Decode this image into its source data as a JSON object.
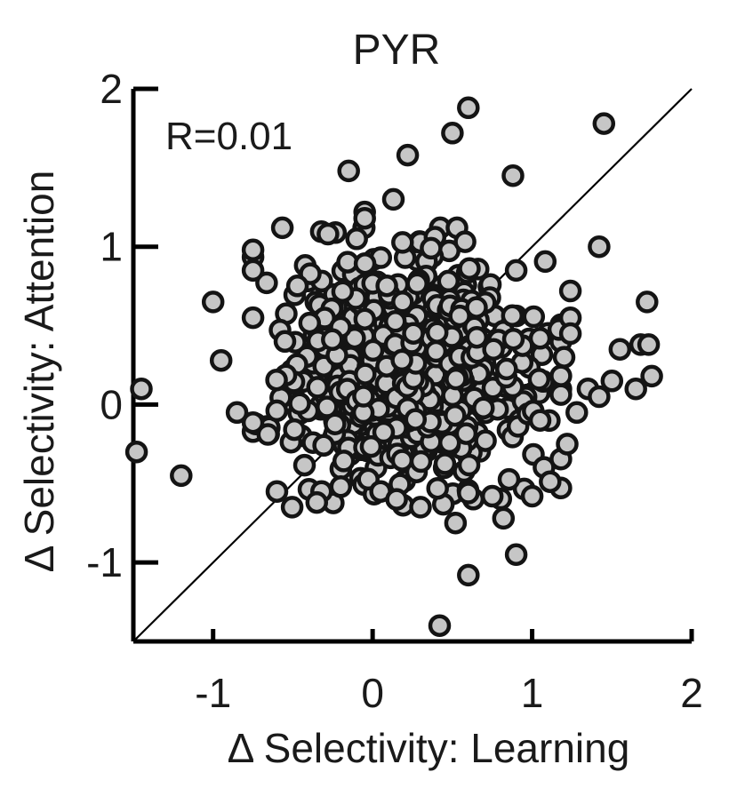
{
  "chart_data": {
    "type": "scatter",
    "title": "PYR",
    "xlabel": "Δ Selectivity: Learning",
    "ylabel": "Δ Selectivity: Attention",
    "xlim": [
      -1.5,
      2
    ],
    "ylim": [
      -1.5,
      2
    ],
    "xticks": [
      -1,
      0,
      1,
      2
    ],
    "yticks": [
      -1,
      0,
      1,
      2
    ],
    "xtick_labels": [
      "-1",
      "0",
      "1",
      "2"
    ],
    "ytick_labels": [
      "-1",
      "0",
      "1",
      "2"
    ],
    "annotation": "R=0.01",
    "reference_line": "identity (y = x)",
    "grid": false,
    "legend": "none",
    "marker_fill": "#c6c6c6",
    "marker_edge": "#141414",
    "series": [
      {
        "x": [
          0.6,
          0.5,
          0.22,
          -0.15,
          1.45,
          0.88,
          0.13,
          -0.05,
          -0.75,
          -0.75,
          -1.0,
          -0.95,
          -0.85,
          -1.45,
          -1.48,
          -1.2,
          -0.6,
          -0.55,
          1.42,
          1.5,
          1.35,
          1.55,
          1.65,
          1.72,
          1.68,
          1.73,
          1.75,
          1.24,
          1.24,
          1.24,
          1.2,
          1.28,
          1.42,
          1.22,
          0.9,
          0.6,
          0.42,
          0.05,
          0.52,
          0.15,
          0.3,
          0.75,
          0.82,
          1.0,
          1.05,
          1.05,
          0.9,
          -0.2,
          -0.32,
          -0.35,
          -0.28,
          -0.1,
          -0.05
        ],
        "y": [
          1.88,
          1.72,
          1.58,
          1.48,
          1.78,
          1.45,
          1.3,
          1.22,
          0.98,
          0.85,
          0.65,
          0.28,
          -0.05,
          0.1,
          -0.3,
          -0.45,
          -0.55,
          0.4,
          1.0,
          0.15,
          0.1,
          0.35,
          0.1,
          0.65,
          0.38,
          0.38,
          0.18,
          0.72,
          0.55,
          0.45,
          0.3,
          -0.05,
          0.05,
          -0.25,
          -0.95,
          -1.08,
          -1.4,
          -0.55,
          -0.75,
          -0.6,
          -0.65,
          -0.58,
          -0.72,
          -0.58,
          0.42,
          -0.1,
          0.85,
          -0.52,
          -0.55,
          -0.62,
          1.08,
          1.05,
          1.18
        ]
      }
    ],
    "dense_cloud": {
      "n_points": 640,
      "center_x": 0.22,
      "center_y": 0.22,
      "spread_x": 0.38,
      "spread_y": 0.36,
      "x_range": [
        -0.75,
        1.18
      ],
      "y_range": [
        -0.65,
        1.12
      ]
    }
  }
}
